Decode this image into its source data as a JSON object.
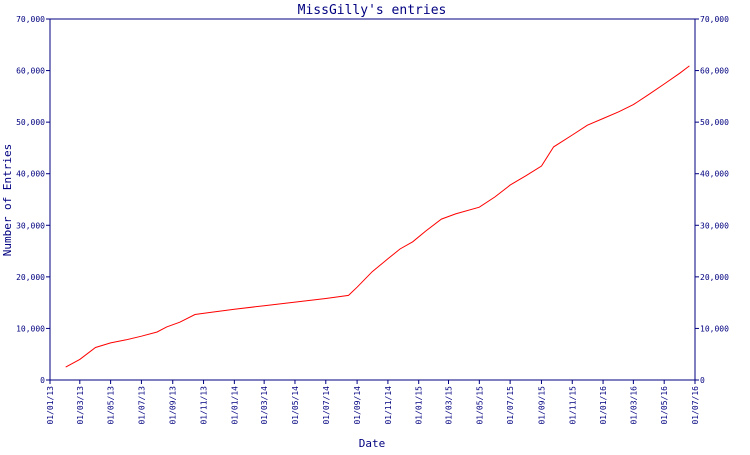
{
  "chart_data": {
    "type": "line",
    "title": "MissGilly's entries",
    "xlabel": "Date",
    "ylabel": "Number of Entries",
    "ylim": [
      0,
      70000
    ],
    "y_ticks": [
      {
        "value": 0,
        "label": "0"
      },
      {
        "value": 10000,
        "label": "10,000"
      },
      {
        "value": 20000,
        "label": "20,000"
      },
      {
        "value": 30000,
        "label": "30,000"
      },
      {
        "value": 40000,
        "label": "40,000"
      },
      {
        "value": 50000,
        "label": "50,000"
      },
      {
        "value": 60000,
        "label": "60,000"
      },
      {
        "value": 70000,
        "label": "70,000"
      }
    ],
    "x_range": [
      "2013-01-01",
      "2016-07-01"
    ],
    "x_ticks": [
      {
        "date": "2013-01-01",
        "label": "01/01/13"
      },
      {
        "date": "2013-03-01",
        "label": "01/03/13"
      },
      {
        "date": "2013-05-01",
        "label": "01/05/13"
      },
      {
        "date": "2013-07-01",
        "label": "01/07/13"
      },
      {
        "date": "2013-09-01",
        "label": "01/09/13"
      },
      {
        "date": "2013-11-01",
        "label": "01/11/13"
      },
      {
        "date": "2014-01-01",
        "label": "01/01/14"
      },
      {
        "date": "2014-03-01",
        "label": "01/03/14"
      },
      {
        "date": "2014-05-01",
        "label": "01/05/14"
      },
      {
        "date": "2014-07-01",
        "label": "01/07/14"
      },
      {
        "date": "2014-09-01",
        "label": "01/09/14"
      },
      {
        "date": "2014-11-01",
        "label": "01/11/14"
      },
      {
        "date": "2015-01-01",
        "label": "01/01/15"
      },
      {
        "date": "2015-03-01",
        "label": "01/03/15"
      },
      {
        "date": "2015-05-01",
        "label": "01/05/15"
      },
      {
        "date": "2015-07-01",
        "label": "01/07/15"
      },
      {
        "date": "2015-09-01",
        "label": "01/09/15"
      },
      {
        "date": "2015-11-01",
        "label": "01/11/15"
      },
      {
        "date": "2016-01-01",
        "label": "01/01/16"
      },
      {
        "date": "2016-03-01",
        "label": "01/03/16"
      },
      {
        "date": "2016-05-01",
        "label": "01/05/16"
      },
      {
        "date": "2016-07-01",
        "label": "01/07/16"
      }
    ],
    "grid": false,
    "dual_y_axis": true,
    "colors": {
      "line": "#ff0000",
      "axis": "#000080",
      "text": "#000080"
    },
    "series": [
      {
        "points": [
          {
            "x": "2013-02-01",
            "y": 2500
          },
          {
            "x": "2013-03-01",
            "y": 4000
          },
          {
            "x": "2013-04-01",
            "y": 6300
          },
          {
            "x": "2013-05-01",
            "y": 7200
          },
          {
            "x": "2013-06-01",
            "y": 7800
          },
          {
            "x": "2013-07-01",
            "y": 8500
          },
          {
            "x": "2013-08-01",
            "y": 9300
          },
          {
            "x": "2013-08-20",
            "y": 10300
          },
          {
            "x": "2013-09-15",
            "y": 11200
          },
          {
            "x": "2013-10-15",
            "y": 12700
          },
          {
            "x": "2013-11-15",
            "y": 13100
          },
          {
            "x": "2014-01-01",
            "y": 13700
          },
          {
            "x": "2014-03-01",
            "y": 14400
          },
          {
            "x": "2014-05-01",
            "y": 15100
          },
          {
            "x": "2014-07-01",
            "y": 15800
          },
          {
            "x": "2014-08-15",
            "y": 16400
          },
          {
            "x": "2014-09-01",
            "y": 18000
          },
          {
            "x": "2014-10-01",
            "y": 21000
          },
          {
            "x": "2014-11-01",
            "y": 23500
          },
          {
            "x": "2014-11-25",
            "y": 25400
          },
          {
            "x": "2014-12-20",
            "y": 26800
          },
          {
            "x": "2015-01-15",
            "y": 28900
          },
          {
            "x": "2015-02-15",
            "y": 31200
          },
          {
            "x": "2015-03-15",
            "y": 32200
          },
          {
            "x": "2015-05-01",
            "y": 33500
          },
          {
            "x": "2015-06-01",
            "y": 35500
          },
          {
            "x": "2015-07-01",
            "y": 37800
          },
          {
            "x": "2015-08-01",
            "y": 39600
          },
          {
            "x": "2015-09-01",
            "y": 41500
          },
          {
            "x": "2015-09-25",
            "y": 45200
          },
          {
            "x": "2015-11-01",
            "y": 47500
          },
          {
            "x": "2015-12-01",
            "y": 49400
          },
          {
            "x": "2016-01-01",
            "y": 50700
          },
          {
            "x": "2016-02-01",
            "y": 52000
          },
          {
            "x": "2016-03-01",
            "y": 53400
          },
          {
            "x": "2016-04-01",
            "y": 55400
          },
          {
            "x": "2016-05-01",
            "y": 57400
          },
          {
            "x": "2016-06-01",
            "y": 59500
          },
          {
            "x": "2016-06-20",
            "y": 60900
          }
        ]
      }
    ]
  }
}
